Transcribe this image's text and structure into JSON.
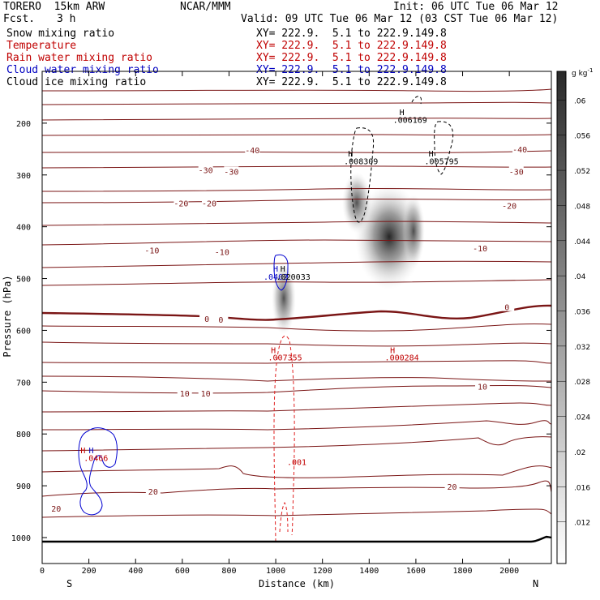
{
  "header": {
    "model": "TORERO  15km ARW",
    "center": "NCAR/MMM",
    "init": "Init: 06 UTC Tue 06 Mar 12",
    "fcst_label": "Fcst.",
    "fcst_value": "3 h",
    "valid": "Valid: 09 UTC Tue 06 Mar 12 (03 CST Tue 06 Mar 12)"
  },
  "legend": [
    {
      "name": "Snow mixing ratio",
      "xy": "XY= 222.9.  5.1 to 222.9.149.8",
      "color": "#000000"
    },
    {
      "name": "Temperature",
      "xy": "XY= 222.9.  5.1 to 222.9.149.8",
      "color": "#c00000"
    },
    {
      "name": "Rain water mixing ratio",
      "xy": "XY= 222.9.  5.1 to 222.9.149.8",
      "color": "#c00000"
    },
    {
      "name": "Cloud water mixing ratio",
      "xy": "XY= 222.9.  5.1 to 222.9.149.8",
      "color": "#0000c0"
    },
    {
      "name": "Cloud ice mixing ratio",
      "xy": "XY= 222.9.  5.1 to 222.9.149.8",
      "color": "#000000"
    }
  ],
  "chart_data": {
    "type": "contour",
    "xlabel": "Distance (km)",
    "ylabel": "Pressure (hPa)",
    "xlim": [
      0,
      2180
    ],
    "ylim": [
      1000,
      100
    ],
    "x_ticks": [
      0,
      200,
      400,
      600,
      800,
      1000,
      1200,
      1400,
      1600,
      1800,
      2000
    ],
    "x_tick_labels": [
      "0",
      "200",
      "400",
      "600",
      "800",
      "1000",
      "1200",
      "1400",
      "1600",
      "1800",
      "2000"
    ],
    "y_ticks": [
      200,
      300,
      400,
      500,
      600,
      700,
      800,
      900,
      1000
    ],
    "y_tick_labels": [
      "200",
      "300",
      "400",
      "500",
      "600",
      "700",
      "800",
      "900",
      "1000"
    ],
    "x_end_labels": {
      "left": "S",
      "right": "N"
    },
    "colorbar": {
      "unit": "g kg",
      "unit_exp": "-1",
      "labels": [
        ".012",
        ".016",
        ".02",
        ".024",
        ".028",
        ".032",
        ".036",
        ".04",
        ".044",
        ".048",
        ".052",
        ".056",
        ".06"
      ]
    },
    "temperature_labels": [
      {
        "text": "-40",
        "x": 900,
        "p": 252
      },
      {
        "text": "-40",
        "x": 2045,
        "p": 250
      },
      {
        "text": "-30",
        "x": 700,
        "p": 290
      },
      {
        "text": "-30",
        "x": 810,
        "p": 293
      },
      {
        "text": "-30",
        "x": 2030,
        "p": 293
      },
      {
        "text": "-20",
        "x": 595,
        "p": 354
      },
      {
        "text": "-20",
        "x": 715,
        "p": 354
      },
      {
        "text": "-20",
        "x": 2000,
        "p": 359
      },
      {
        "text": "-10",
        "x": 470,
        "p": 445
      },
      {
        "text": "-10",
        "x": 770,
        "p": 448
      },
      {
        "text": "-10",
        "x": 1875,
        "p": 441
      },
      {
        "text": "0",
        "x": 705,
        "p": 577
      },
      {
        "text": "0",
        "x": 765,
        "p": 579
      },
      {
        "text": "0",
        "x": 1990,
        "p": 555
      },
      {
        "text": "10",
        "x": 610,
        "p": 721
      },
      {
        "text": "10",
        "x": 700,
        "p": 721
      },
      {
        "text": "10",
        "x": 1885,
        "p": 708
      },
      {
        "text": "20",
        "x": 475,
        "p": 911
      },
      {
        "text": "20",
        "x": 1755,
        "p": 901
      },
      {
        "text": "20",
        "x": 60,
        "p": 944
      }
    ],
    "extrema_labels": [
      {
        "text": "H",
        "x": 1540,
        "p": 178,
        "color": "#000000"
      },
      {
        "text": ".006169",
        "x": 1575,
        "p": 193,
        "color": "#000000"
      },
      {
        "text": "H",
        "x": 1320,
        "p": 258,
        "color": "#000000"
      },
      {
        "text": ".008309",
        "x": 1365,
        "p": 273,
        "color": "#000000"
      },
      {
        "text": "H",
        "x": 1665,
        "p": 258,
        "color": "#000000"
      },
      {
        "text": ".005795",
        "x": 1710,
        "p": 273,
        "color": "#000000"
      },
      {
        "text": "H",
        "x": 1000,
        "p": 480,
        "color": "#0000c0"
      },
      {
        "text": "H",
        "x": 1030,
        "p": 480,
        "color": "#000000"
      },
      {
        "text": ".0402",
        "x": 1000,
        "p": 496,
        "color": "#0000c0"
      },
      {
        "text": ".020033",
        "x": 1075,
        "p": 496,
        "color": "#000000"
      },
      {
        "text": "H",
        "x": 990,
        "p": 638,
        "color": "#c00000"
      },
      {
        "text": ".007355",
        "x": 1040,
        "p": 652,
        "color": "#c00000"
      },
      {
        "text": "H",
        "x": 1500,
        "p": 638,
        "color": "#c00000"
      },
      {
        "text": ".000284",
        "x": 1540,
        "p": 652,
        "color": "#c00000"
      },
      {
        "text": ".001",
        "x": 1090,
        "p": 854,
        "color": "#c00000"
      },
      {
        "text": "H",
        "x": 175,
        "p": 831,
        "color": "#c00000"
      },
      {
        "text": "H",
        "x": 210,
        "p": 831,
        "color": "#0000c0"
      },
      {
        "text": ".0466",
        "x": 230,
        "p": 846,
        "color": "#c00000"
      }
    ]
  }
}
